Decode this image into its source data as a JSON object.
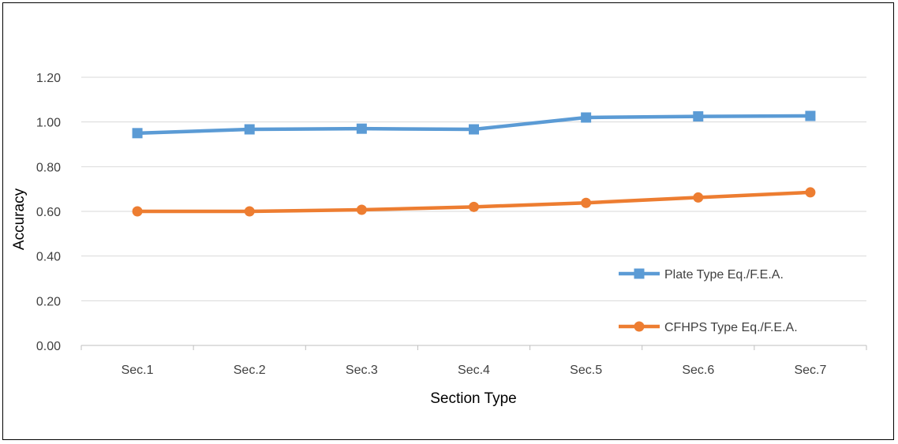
{
  "chart_data": {
    "type": "line",
    "title": "",
    "xlabel": "Section Type",
    "ylabel": "Accuracy",
    "categories": [
      "Sec.1",
      "Sec.2",
      "Sec.3",
      "Sec.4",
      "Sec.5",
      "Sec.6",
      "Sec.7"
    ],
    "ylim": [
      0,
      1.2
    ],
    "yticks": [
      "0.00",
      "0.20",
      "0.40",
      "0.60",
      "0.80",
      "1.00",
      "1.20"
    ],
    "grid": true,
    "legend_position": "right",
    "series": [
      {
        "name": "Plate Type Eq./F.E.A.",
        "values": [
          0.95,
          0.967,
          0.97,
          0.967,
          1.02,
          1.025,
          1.027
        ],
        "color": "#5B9BD5",
        "marker": "square"
      },
      {
        "name": "CFHPS Type Eq./F.E.A.",
        "values": [
          0.6,
          0.6,
          0.607,
          0.62,
          0.638,
          0.662,
          0.685
        ],
        "color": "#ED7D31",
        "marker": "circle"
      }
    ]
  }
}
